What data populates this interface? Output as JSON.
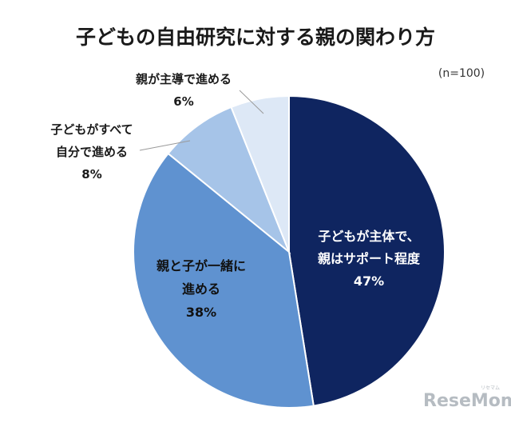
{
  "chart_data": {
    "type": "pie",
    "title": "子どもの自由研究に対する親の関わり方",
    "note": "(n=100)",
    "slices": [
      {
        "label_lines": [
          "子どもが主体で、",
          "親はサポート程度"
        ],
        "value": 47,
        "value_label": "47%",
        "color": "#0f2560"
      },
      {
        "label_lines": [
          "親と子が一緒に",
          "進める"
        ],
        "value": 38,
        "value_label": "38%",
        "color": "#5f92d0"
      },
      {
        "label_lines": [
          "子どもがすべて",
          "自分で進める"
        ],
        "value": 8,
        "value_label": "8%",
        "color": "#a6c4e8"
      },
      {
        "label_lines": [
          "親が主導で進める"
        ],
        "value": 6,
        "value_label": "6%",
        "color": "#dde8f6"
      }
    ]
  },
  "watermark": {
    "brand": "ReseMom",
    "reading": "リセマム"
  }
}
